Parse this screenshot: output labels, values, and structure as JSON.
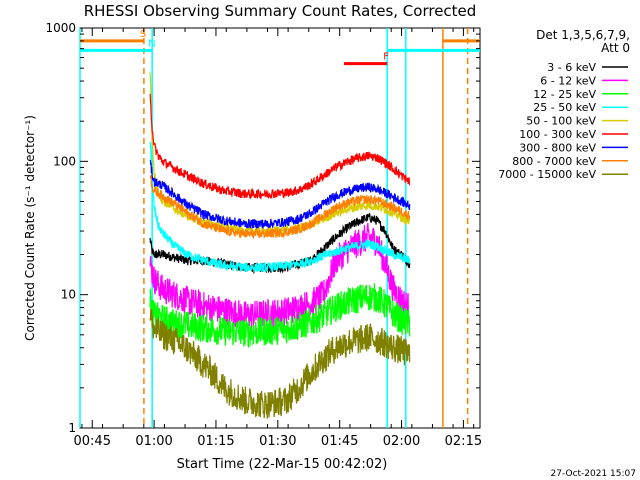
{
  "chart_data": {
    "type": "line",
    "title": "RHESSI Observing Summary Count Rates, Corrected",
    "xlabel": "Start Time (22-Mar-15 00:42:02)",
    "ylabel": "Corrected Count Rate (s⁻¹ detector⁻¹)",
    "y_scale": "log",
    "ylim": [
      1,
      1000
    ],
    "xlim": [
      0,
      97
    ],
    "y_ticks": [
      {
        "value": 1,
        "label": "1"
      },
      {
        "value": 10,
        "label": "10"
      },
      {
        "value": 100,
        "label": "100"
      },
      {
        "value": 1000,
        "label": "1000"
      }
    ],
    "x_ticks": [
      {
        "value": 2.97,
        "label": "00:45"
      },
      {
        "value": 17.97,
        "label": "01:00"
      },
      {
        "value": 32.97,
        "label": "01:15"
      },
      {
        "value": 47.97,
        "label": "01:30"
      },
      {
        "value": 62.97,
        "label": "01:45"
      },
      {
        "value": 77.97,
        "label": "02:00"
      },
      {
        "value": 92.97,
        "label": "02:15"
      }
    ],
    "legend": {
      "placement": "right",
      "header_lines": [
        "Det 1,3,5,6,7,9,",
        "Att 0"
      ]
    },
    "series": [
      {
        "name": "3 - 6 keV",
        "color": "#000000",
        "x": [
          17,
          17.5,
          18,
          20,
          23,
          26,
          30,
          35,
          40,
          45,
          50,
          53,
          56,
          59,
          62,
          65,
          68,
          70,
          72,
          74,
          76,
          78,
          80
        ],
        "y": [
          26,
          21,
          20,
          20,
          19,
          18,
          18,
          17,
          16,
          16,
          16,
          17,
          18,
          22,
          27,
          32,
          36,
          38,
          36,
          30,
          22,
          20,
          17
        ]
      },
      {
        "name": "6 - 12 keV",
        "color": "#ff00ff",
        "x": [
          17,
          17.5,
          18,
          20,
          23,
          26,
          30,
          35,
          40,
          45,
          50,
          53,
          56,
          59,
          62,
          65,
          68,
          70,
          72,
          74,
          76,
          78,
          80
        ],
        "y": [
          17,
          15,
          13,
          11,
          10,
          9,
          8.2,
          7.6,
          7.0,
          7.2,
          7.5,
          8.0,
          8.6,
          10,
          18,
          22,
          25,
          27,
          25,
          17,
          11,
          9,
          8
        ]
      },
      {
        "name": "12 - 25 keV",
        "color": "#00ff00",
        "x": [
          17,
          17.5,
          18,
          20,
          23,
          26,
          30,
          35,
          40,
          45,
          50,
          53,
          56,
          59,
          62,
          65,
          68,
          70,
          72,
          74,
          76,
          78,
          80
        ],
        "y": [
          9,
          7.5,
          7.0,
          6.6,
          6.1,
          5.9,
          5.6,
          5.3,
          5.2,
          5.3,
          5.5,
          5.8,
          6.2,
          7.0,
          8.0,
          8.8,
          9.4,
          9.7,
          9.4,
          8.5,
          7.2,
          6.4,
          6.0
        ]
      },
      {
        "name": "25 - 50 keV",
        "color": "#00ffff",
        "x": [
          17,
          17.5,
          18,
          19,
          20,
          23,
          26,
          30,
          35,
          40,
          45,
          50,
          53,
          56,
          59,
          62,
          65,
          68,
          70,
          72,
          74,
          76,
          78,
          80
        ],
        "y": [
          150,
          75,
          45,
          33,
          29,
          23,
          20,
          18,
          16.5,
          16,
          16,
          16.5,
          17,
          18,
          19.5,
          21,
          22.5,
          23.5,
          24,
          23,
          21.5,
          20,
          19,
          18
        ]
      },
      {
        "name": "50 - 100 keV",
        "color": "#d8cc00",
        "x": [
          17,
          17.5,
          18,
          19,
          20,
          23,
          26,
          30,
          35,
          40,
          45,
          50,
          53,
          56,
          59,
          62,
          65,
          68,
          70,
          72,
          74,
          76,
          78,
          80
        ],
        "y": [
          500,
          140,
          80,
          58,
          51,
          44,
          39,
          35,
          32,
          30,
          30,
          30.5,
          31.5,
          33.5,
          37,
          41,
          44,
          46,
          47,
          46,
          44,
          41,
          38,
          35
        ]
      },
      {
        "name": "100 - 300 keV",
        "color": "#ff0000",
        "x": [
          17,
          17.5,
          18,
          19,
          20,
          23,
          26,
          30,
          35,
          40,
          45,
          50,
          53,
          56,
          59,
          62,
          65,
          68,
          70,
          72,
          74,
          76,
          78,
          80
        ],
        "y": [
          300,
          180,
          130,
          110,
          100,
          88,
          78,
          68,
          60,
          57,
          57,
          58,
          61,
          67,
          78,
          90,
          100,
          107,
          110,
          107,
          98,
          88,
          78,
          70
        ]
      },
      {
        "name": "300 - 800 keV",
        "color": "#0000ff",
        "x": [
          17,
          17.5,
          18,
          19,
          20,
          23,
          26,
          30,
          35,
          40,
          45,
          50,
          53,
          56,
          59,
          62,
          65,
          68,
          70,
          72,
          74,
          76,
          78,
          80
        ],
        "y": [
          100,
          80,
          70,
          68,
          66,
          56,
          47,
          40,
          36,
          34,
          34,
          35,
          37,
          41,
          48,
          55,
          60,
          63,
          64,
          62,
          58,
          54,
          50,
          46
        ]
      },
      {
        "name": "800 - 7000 keV",
        "color": "#ff8000",
        "x": [
          17,
          17.5,
          18,
          19,
          20,
          23,
          26,
          30,
          35,
          40,
          45,
          50,
          53,
          56,
          59,
          62,
          65,
          68,
          70,
          72,
          74,
          76,
          78,
          80
        ],
        "y": [
          80,
          65,
          60,
          58,
          55,
          48,
          41,
          34,
          30,
          28.5,
          28.5,
          29.5,
          31,
          34,
          39,
          45,
          49,
          51.5,
          52,
          51,
          48,
          45,
          42,
          39
        ]
      },
      {
        "name": "7000 - 15000 keV",
        "color": "#808000",
        "x": [
          17,
          17.5,
          18,
          20,
          23,
          26,
          29,
          32,
          35,
          40,
          45,
          50,
          53,
          56,
          59,
          62,
          65,
          68,
          70,
          72,
          74,
          76,
          78,
          80
        ],
        "y": [
          7.5,
          6.0,
          5.5,
          5.0,
          4.5,
          3.9,
          3.2,
          2.6,
          2.0,
          1.6,
          1.5,
          1.6,
          2.0,
          2.6,
          3.3,
          4.0,
          4.4,
          4.6,
          4.8,
          4.6,
          4.3,
          4.0,
          3.8,
          3.5
        ]
      }
    ],
    "annotations": [
      {
        "text": "S",
        "color": "#ff8000",
        "kind": "SAA flag",
        "x_start": -2,
        "x_end": 15.5,
        "y": 800,
        "line_color": "#ff8000",
        "boundary_x": 15.5
      },
      {
        "text": "N",
        "color": "#00ffff",
        "kind": "night flag",
        "x_start": -2,
        "x_end": 17.5,
        "y": 680,
        "line_color": "#00ffff",
        "boundary_x": 17.5
      },
      {
        "text": "F",
        "color": "#ff0000",
        "kind": "flare flag",
        "x_start": 64,
        "x_end": 74.5,
        "y": 540,
        "line_color": "#ff0000"
      },
      {
        "text": "",
        "kind": "night flag",
        "color": "#00ffff",
        "x_start": 74.5,
        "x_end": 99,
        "y": 680,
        "line_color": "#00ffff",
        "boundary_x": 74.5
      },
      {
        "text": "",
        "kind": "SAA flag",
        "color": "#ff8000",
        "x_start": 88,
        "x_end": 99,
        "y": 800,
        "line_color": "#ff8000",
        "boundary_x": 88
      }
    ],
    "vertical_markers": [
      {
        "x": 15.5,
        "color": "#ff8000",
        "style": "dashed"
      },
      {
        "x": 17.5,
        "color": "#00ffff",
        "style": "solid"
      },
      {
        "x": 74.5,
        "color": "#00ffff",
        "style": "solid"
      },
      {
        "x": 79.0,
        "color": "#00ffff",
        "style": "solid"
      },
      {
        "x": 88.0,
        "color": "#ff8000",
        "style": "solid"
      },
      {
        "x": 94.0,
        "color": "#ff8000",
        "style": "dashed"
      },
      {
        "x": 0.0,
        "color": "#00ffff",
        "style": "solid"
      }
    ]
  },
  "footer": {
    "timestamp": "27-Oct-2021 15:07"
  }
}
